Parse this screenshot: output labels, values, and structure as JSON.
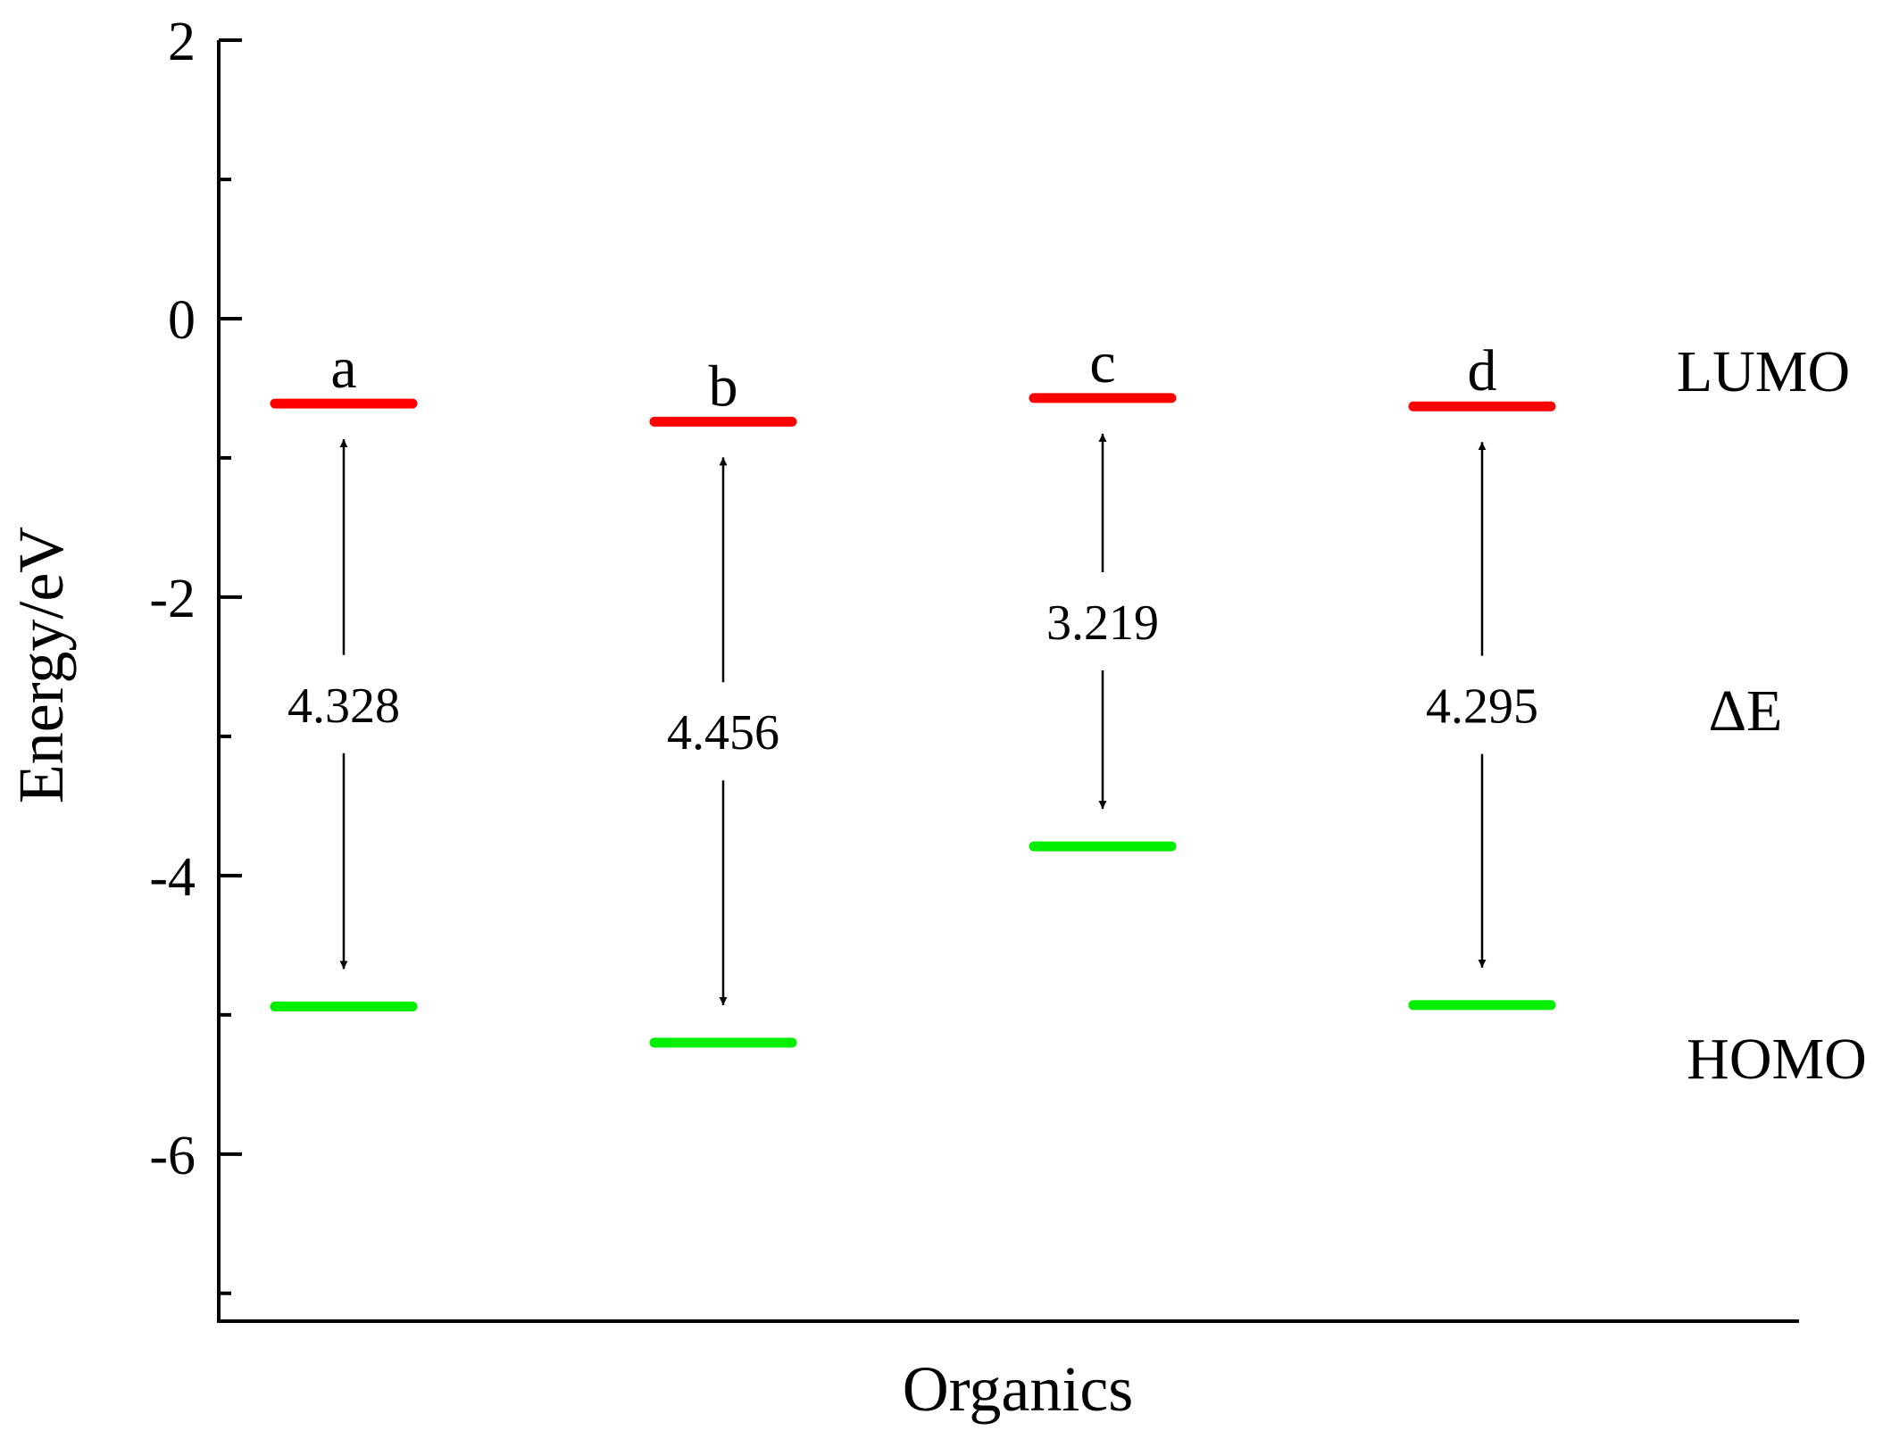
{
  "chart_data": {
    "type": "energy-level-diagram",
    "xlabel": "Organics",
    "ylabel": "Energy/eV",
    "ylim": [
      -7.2,
      2
    ],
    "yticks": [
      2,
      0,
      -2,
      -4,
      -6
    ],
    "categories": [
      "a",
      "b",
      "c",
      "d"
    ],
    "series": [
      {
        "name": "LUMO",
        "values": [
          -0.61,
          -0.74,
          -0.57,
          -0.63
        ]
      },
      {
        "name": "HOMO",
        "values": [
          -4.94,
          -5.2,
          -3.79,
          -4.93
        ]
      }
    ],
    "gaps": [
      "4.328",
      "4.456",
      "3.219",
      "4.295"
    ],
    "side_labels": {
      "lumo": "LUMO",
      "delta": "ΔE",
      "homo": "HOMO"
    },
    "colors": {
      "lumo": "#ff0000",
      "homo": "#00ee00",
      "axis": "#000000"
    }
  }
}
